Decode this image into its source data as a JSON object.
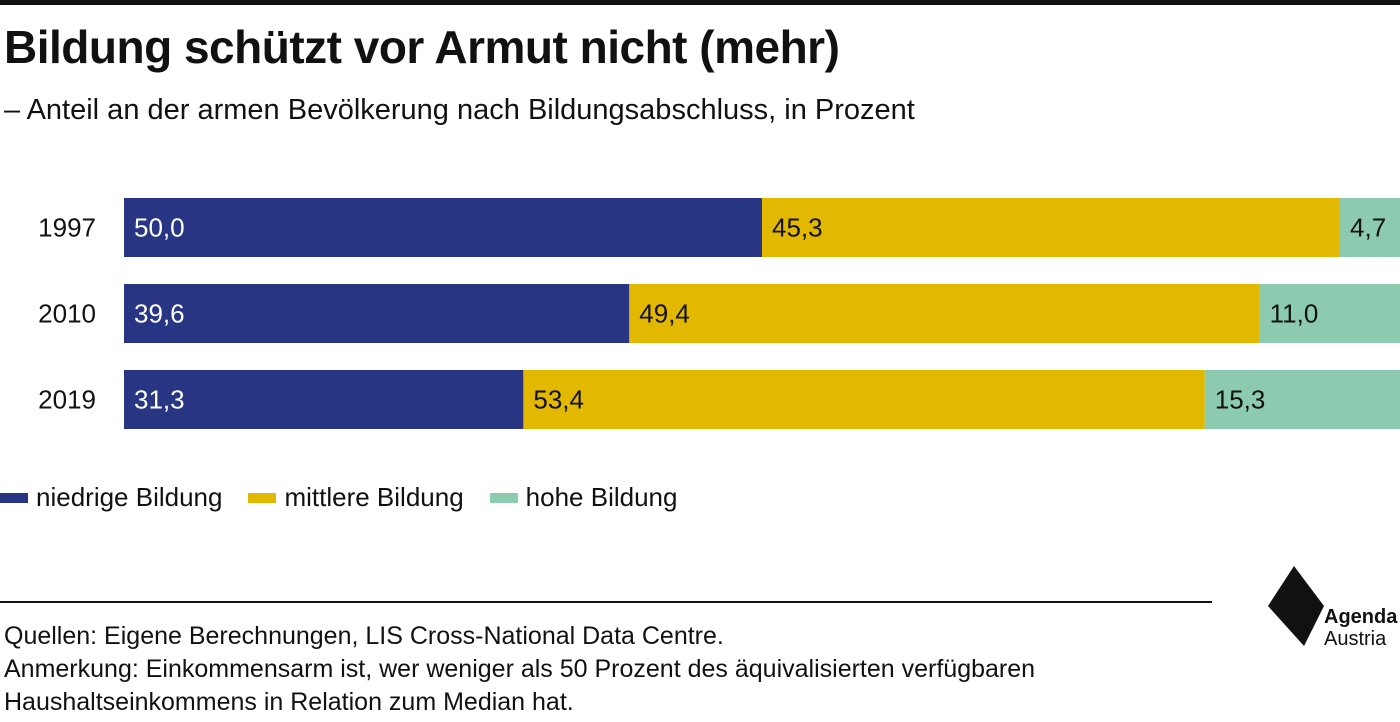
{
  "title": "Bildung schützt vor Armut nicht (mehr)",
  "subtitle": "– Anteil an der armen Bevölkerung nach Bildungsabschluss, in Prozent",
  "chart_data": {
    "type": "bar",
    "orientation": "horizontal",
    "stacked": true,
    "categories": [
      "1997",
      "2010",
      "2019"
    ],
    "series": [
      {
        "name": "niedrige Bildung",
        "color": "#283583",
        "values": [
          50.0,
          39.6,
          31.3
        ],
        "labels": [
          "50,0",
          "39,6",
          "31,3"
        ]
      },
      {
        "name": "mittlere Bildung",
        "color": "#E2B900",
        "values": [
          45.3,
          49.4,
          53.4
        ],
        "labels": [
          "45,3",
          "49,4",
          "53,4"
        ]
      },
      {
        "name": "hohe Bildung",
        "color": "#8CCBAF",
        "values": [
          4.7,
          11.0,
          15.3
        ],
        "labels": [
          "4,7",
          "11,0",
          "15,3"
        ]
      }
    ],
    "xlim": [
      0,
      100
    ],
    "grid": false,
    "legend": "bottom-left"
  },
  "legend": [
    {
      "label": "niedrige Bildung",
      "color": "#283583"
    },
    {
      "label": "mittlere Bildung",
      "color": "#E2B900"
    },
    {
      "label": "hohe Bildung",
      "color": "#8CCBAF"
    }
  ],
  "footer": {
    "sources": "Quellen: Eigene Berechnungen, LIS Cross-National Data Centre.",
    "note_line1": "Anmerkung: Einkommensarm ist, wer weniger als 50 Prozent des äquivalisierten verfügbaren",
    "note_line2": "Haushaltseinkommens in Relation zum Median hat."
  },
  "logo": {
    "line1": "Agenda",
    "line2": "Austria",
    "icon": "agenda-austria-logo-icon"
  }
}
